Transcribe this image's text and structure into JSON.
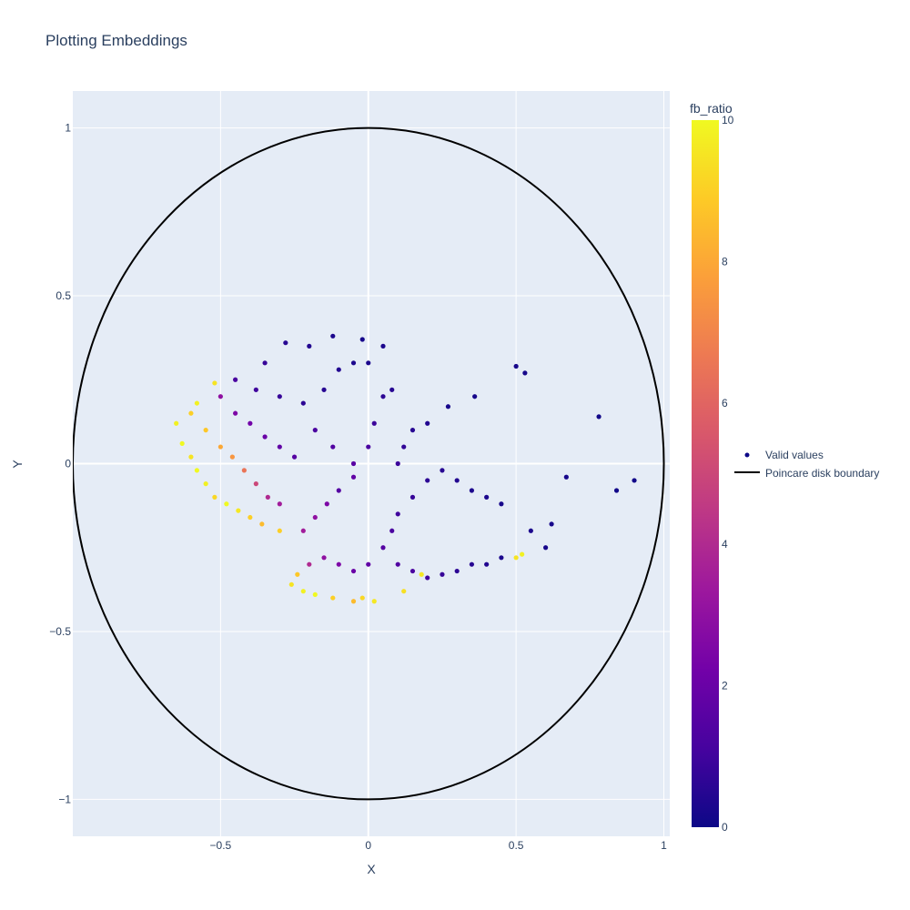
{
  "chart_data": {
    "type": "scatter",
    "title": "Plotting Embeddings",
    "xlabel": "X",
    "ylabel": "Y",
    "xlim": [
      -1.0,
      1.02
    ],
    "ylim": [
      -1.11,
      1.11
    ],
    "x_ticks": [
      -0.5,
      0,
      0.5,
      1
    ],
    "x_tick_labels": [
      "−0.5",
      "0",
      "0.5",
      "1"
    ],
    "y_ticks": [
      -1,
      -0.5,
      0,
      0.5,
      1
    ],
    "y_tick_labels": [
      "−1",
      "−0.5",
      "0",
      "0.5",
      "1"
    ],
    "grid": true,
    "legend_position": "right",
    "colorbar": {
      "title": "fb_ratio",
      "range": [
        0,
        10
      ],
      "ticks": [
        0,
        2,
        4,
        6,
        8,
        10
      ],
      "tick_labels": [
        "0",
        "2",
        "4",
        "6",
        "8",
        "10"
      ],
      "colors": [
        "#0d0887",
        "#46039f",
        "#7201a8",
        "#9c179e",
        "#bd3786",
        "#d8576b",
        "#ed7953",
        "#fb9f3a",
        "#fdca26",
        "#f0f921"
      ]
    },
    "series": [
      {
        "name": "Valid values",
        "mode": "markers",
        "color_by": "fb_ratio",
        "points": [
          [
            -0.65,
            0.12,
            9.8
          ],
          [
            -0.63,
            0.06,
            10
          ],
          [
            -0.6,
            0.02,
            9.5
          ],
          [
            -0.58,
            -0.02,
            10
          ],
          [
            -0.55,
            -0.06,
            9.8
          ],
          [
            -0.52,
            -0.1,
            9.2
          ],
          [
            -0.48,
            -0.12,
            10
          ],
          [
            -0.44,
            -0.14,
            9.6
          ],
          [
            -0.4,
            -0.16,
            9
          ],
          [
            -0.36,
            -0.18,
            8.5
          ],
          [
            -0.6,
            0.15,
            9
          ],
          [
            -0.55,
            0.1,
            8.8
          ],
          [
            -0.5,
            0.05,
            8
          ],
          [
            -0.46,
            0.02,
            7.5
          ],
          [
            -0.42,
            -0.02,
            6.5
          ],
          [
            -0.38,
            -0.06,
            5
          ],
          [
            -0.34,
            -0.1,
            4
          ],
          [
            -0.3,
            -0.12,
            3.5
          ],
          [
            -0.5,
            0.2,
            3
          ],
          [
            -0.45,
            0.15,
            2.5
          ],
          [
            -0.4,
            0.12,
            2.2
          ],
          [
            -0.35,
            0.08,
            2
          ],
          [
            -0.3,
            0.05,
            1.8
          ],
          [
            -0.25,
            0.02,
            1.5
          ],
          [
            -0.45,
            0.25,
            1.2
          ],
          [
            -0.38,
            0.22,
            1
          ],
          [
            -0.3,
            0.2,
            0.8
          ],
          [
            -0.22,
            0.18,
            0.6
          ],
          [
            -0.15,
            0.22,
            0.5
          ],
          [
            -0.1,
            0.28,
            0.4
          ],
          [
            -0.05,
            0.3,
            0.3
          ],
          [
            0.0,
            0.3,
            0.3
          ],
          [
            -0.2,
            0.35,
            0.4
          ],
          [
            -0.28,
            0.36,
            0.5
          ],
          [
            -0.12,
            0.38,
            0.3
          ],
          [
            -0.02,
            0.37,
            0.2
          ],
          [
            0.05,
            0.35,
            0.3
          ],
          [
            -0.35,
            0.3,
            0.8
          ],
          [
            -0.18,
            0.1,
            1.2
          ],
          [
            -0.12,
            0.05,
            1.4
          ],
          [
            -0.05,
            0.0,
            1.6
          ],
          [
            -0.1,
            -0.08,
            1.5
          ],
          [
            -0.05,
            -0.04,
            1.8
          ],
          [
            0.0,
            0.05,
            1.2
          ],
          [
            0.02,
            0.12,
            0.9
          ],
          [
            0.05,
            0.2,
            0.6
          ],
          [
            0.08,
            0.22,
            0.5
          ],
          [
            -0.22,
            -0.2,
            3.5
          ],
          [
            -0.18,
            -0.16,
            3
          ],
          [
            -0.14,
            -0.12,
            2.5
          ],
          [
            -0.26,
            -0.36,
            9.5
          ],
          [
            -0.22,
            -0.38,
            9.8
          ],
          [
            -0.18,
            -0.39,
            10
          ],
          [
            -0.12,
            -0.4,
            9
          ],
          [
            -0.05,
            -0.41,
            8.5
          ],
          [
            0.02,
            -0.41,
            9.6
          ],
          [
            -0.2,
            -0.3,
            4
          ],
          [
            -0.15,
            -0.28,
            3
          ],
          [
            -0.1,
            -0.3,
            2.5
          ],
          [
            -0.05,
            -0.32,
            2
          ],
          [
            0.0,
            -0.3,
            1.8
          ],
          [
            0.05,
            -0.25,
            1.5
          ],
          [
            0.08,
            -0.2,
            1.2
          ],
          [
            0.1,
            -0.15,
            1
          ],
          [
            0.15,
            -0.1,
            0.8
          ],
          [
            0.2,
            -0.05,
            0.6
          ],
          [
            0.25,
            -0.02,
            0.5
          ],
          [
            0.3,
            -0.05,
            0.4
          ],
          [
            0.35,
            -0.08,
            0.3
          ],
          [
            0.4,
            -0.1,
            0.3
          ],
          [
            0.45,
            -0.12,
            0.2
          ],
          [
            0.1,
            0.0,
            0.9
          ],
          [
            0.12,
            0.05,
            0.7
          ],
          [
            0.15,
            0.1,
            0.5
          ],
          [
            0.2,
            0.12,
            0.4
          ],
          [
            0.1,
            -0.3,
            1.4
          ],
          [
            0.15,
            -0.32,
            1.2
          ],
          [
            0.2,
            -0.34,
            1
          ],
          [
            0.25,
            -0.33,
            0.8
          ],
          [
            0.3,
            -0.32,
            0.6
          ],
          [
            0.35,
            -0.3,
            0.5
          ],
          [
            0.4,
            -0.3,
            0.4
          ],
          [
            0.45,
            -0.28,
            0.3
          ],
          [
            0.5,
            -0.28,
            9.5
          ],
          [
            0.52,
            -0.27,
            9.8
          ],
          [
            0.55,
            -0.2,
            0.3
          ],
          [
            0.6,
            -0.25,
            0.2
          ],
          [
            0.62,
            -0.18,
            0.2
          ],
          [
            0.67,
            -0.04,
            0.2
          ],
          [
            0.78,
            0.14,
            0.1
          ],
          [
            0.84,
            -0.08,
            0.1
          ],
          [
            0.9,
            -0.05,
            0.1
          ],
          [
            0.5,
            0.29,
            0.2
          ],
          [
            0.53,
            0.27,
            0.2
          ],
          [
            0.36,
            0.2,
            0.2
          ],
          [
            0.27,
            0.17,
            0.2
          ],
          [
            -0.52,
            0.24,
            9.5
          ],
          [
            -0.58,
            0.18,
            9.8
          ],
          [
            -0.3,
            -0.2,
            9
          ],
          [
            -0.24,
            -0.33,
            8.8
          ],
          [
            -0.02,
            -0.4,
            9.2
          ],
          [
            0.12,
            -0.38,
            9.4
          ],
          [
            0.18,
            -0.33,
            9.6
          ]
        ]
      },
      {
        "name": "Poincare disk boundary",
        "mode": "lines",
        "color": "#000000",
        "shape": "unit-circle"
      }
    ]
  }
}
